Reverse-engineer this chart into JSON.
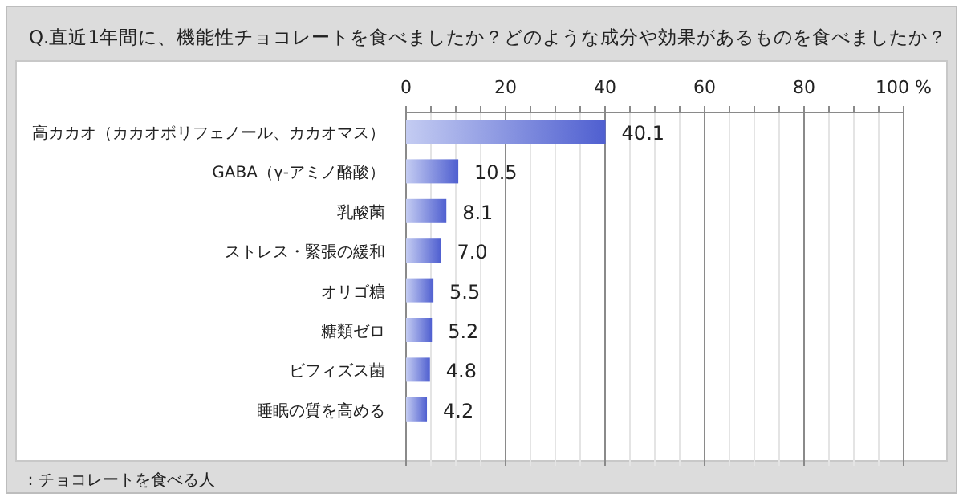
{
  "chart_data": {
    "type": "bar",
    "orientation": "horizontal",
    "title": "Q.直近1年間に、機能性チョコレートを食べましたか？どのような成分や効果があるものを食べましたか？",
    "categories": [
      "高カカオ（カカオポリフェノール、カカオマス）",
      "GABA（γ-アミノ酪酸）",
      "乳酸菌",
      "ストレス・緊張の緩和",
      "オリゴ糖",
      "糖類ゼロ",
      "ビフィズス菌",
      "睡眠の質を高める"
    ],
    "values": [
      40.1,
      10.5,
      8.1,
      7.0,
      5.5,
      5.2,
      4.8,
      4.2
    ],
    "value_labels": [
      "40.1",
      "10.5",
      "8.1",
      "7.0",
      "5.5",
      "5.2",
      "4.8",
      "4.2"
    ],
    "color": "#4f5fd0",
    "xlim": [
      0,
      100
    ],
    "xticks": [
      0,
      {
        "value": 5,
        "label": null
      },
      {
        "value": 10,
        "label": null
      },
      {
        "value": 15,
        "label": null
      },
      20,
      {
        "value": 25,
        "label": null
      },
      {
        "value": 30,
        "label": null
      },
      {
        "value": 35,
        "label": null
      },
      40,
      {
        "value": 45,
        "label": null
      },
      {
        "value": 50,
        "label": null
      },
      {
        "value": 55,
        "label": null
      },
      60,
      {
        "value": 65,
        "label": null
      },
      {
        "value": 70,
        "label": null
      },
      {
        "value": 75,
        "label": null
      },
      80,
      {
        "value": 85,
        "label": null
      },
      {
        "value": 90,
        "label": null
      },
      {
        "value": 95,
        "label": null
      },
      {
        "value": 100,
        "label": "100 %"
      }
    ],
    "grid": "x",
    "annotations": [
      "：チョコレートを食べる人"
    ]
  }
}
